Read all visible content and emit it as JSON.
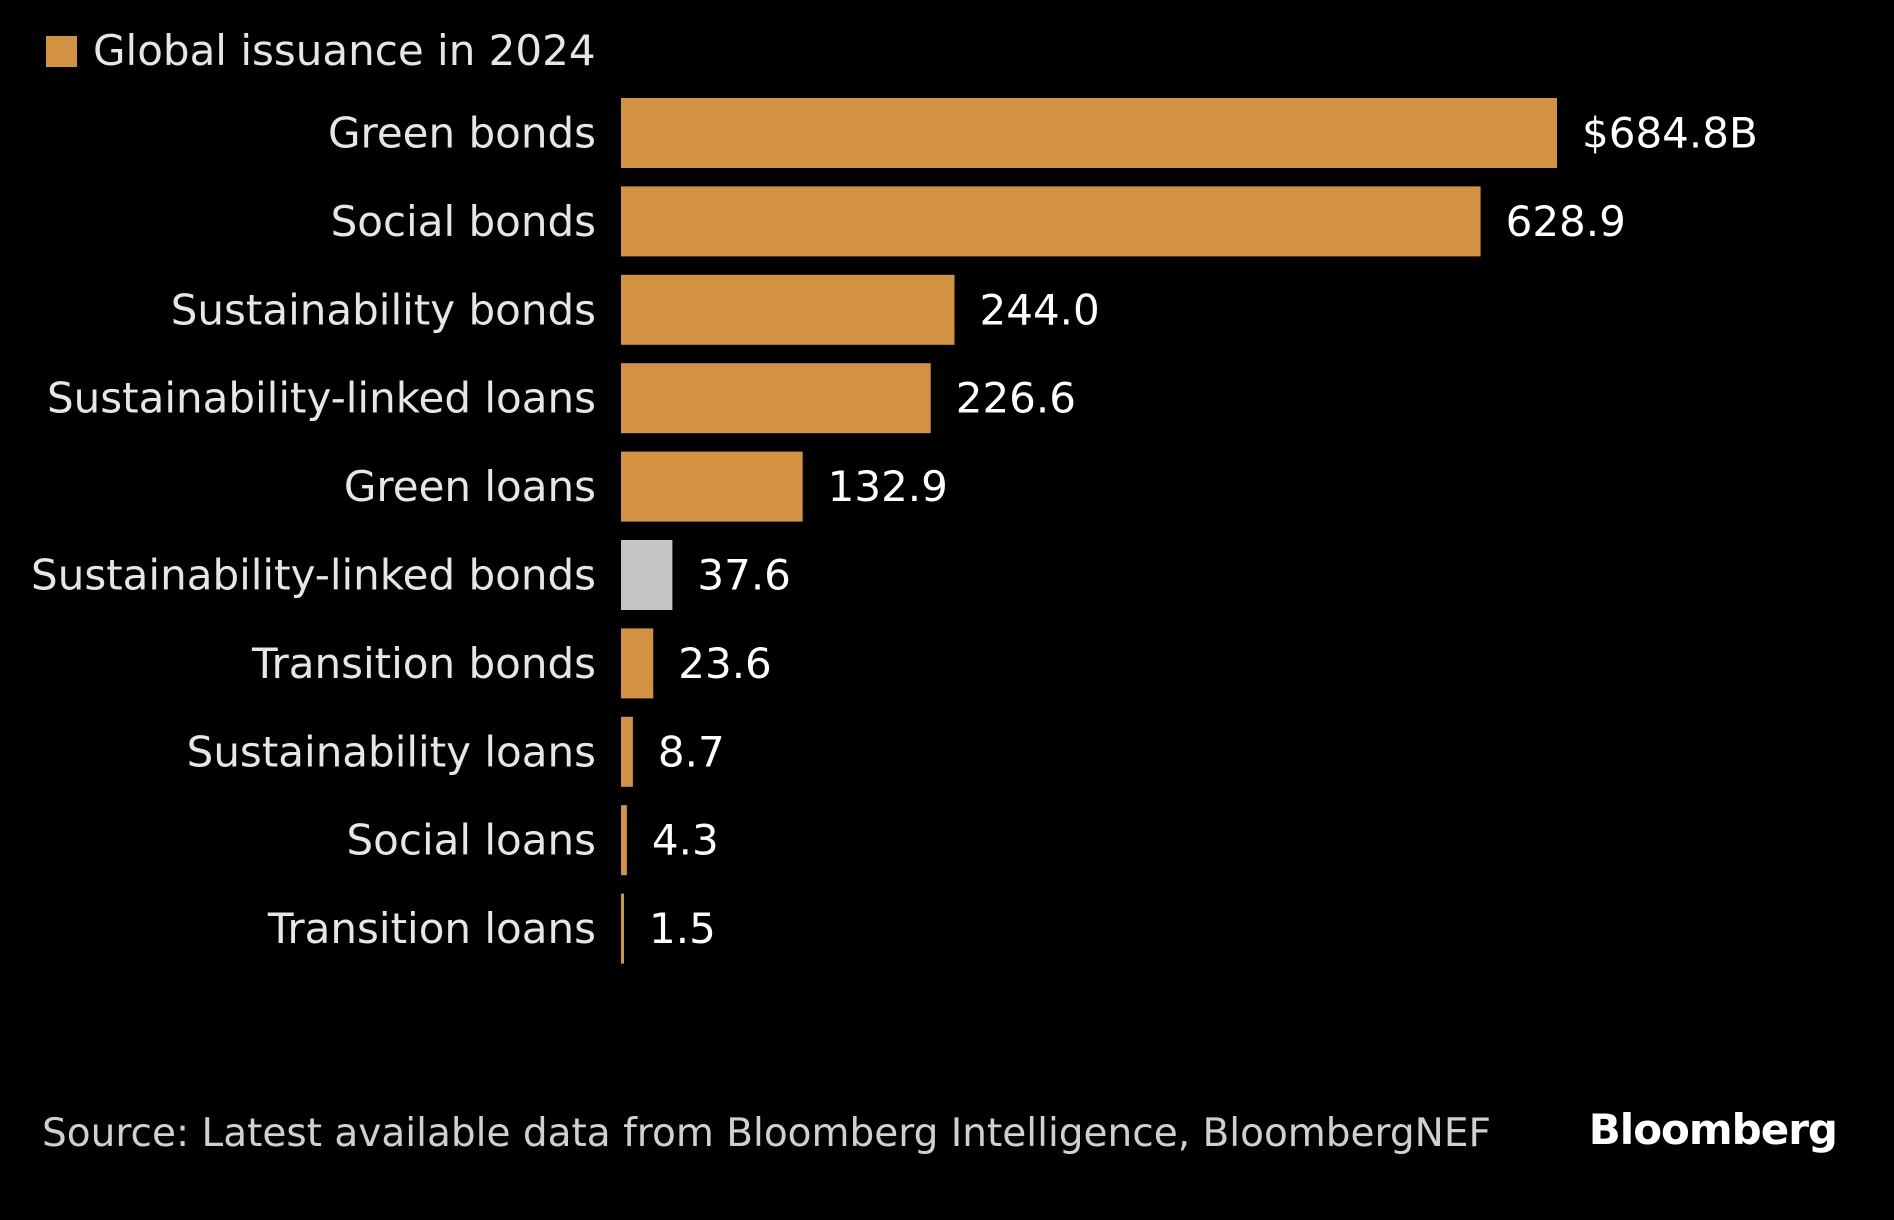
{
  "chart_data": {
    "type": "bar",
    "orientation": "horizontal",
    "legend": {
      "label": "Global issuance in 2024",
      "color": "#D39241",
      "placement": "top-left"
    },
    "categories": [
      "Green bonds",
      "Social bonds",
      "Sustainability bonds",
      "Sustainability-linked loans",
      "Green loans",
      "Sustainability-linked bonds",
      "Transition bonds",
      "Sustainability loans",
      "Social loans",
      "Transition loans"
    ],
    "values": [
      684.8,
      628.9,
      244.0,
      226.6,
      132.9,
      37.6,
      23.6,
      8.7,
      4.3,
      1.5
    ],
    "value_labels": [
      "$684.8B",
      "628.9",
      "244.0",
      "226.6",
      "132.9",
      "37.6",
      "23.6",
      "8.7",
      "4.3",
      "1.5"
    ],
    "bar_colors": [
      "#D39241",
      "#D39241",
      "#D39241",
      "#D39241",
      "#D39241",
      "#C4C4C4",
      "#D39241",
      "#D39241",
      "#D39241",
      "#D39241"
    ],
    "unit": "$B",
    "xlim": [
      0,
      684.8
    ],
    "grid": false,
    "axes_visible": false
  },
  "footer": {
    "source": "Source: Latest available data from Bloomberg Intelligence, BloombergNEF",
    "logo": "Bloomberg"
  },
  "colors": {
    "background": "#000000",
    "accent": "#D39241",
    "highlight": "#C4C4C4"
  }
}
